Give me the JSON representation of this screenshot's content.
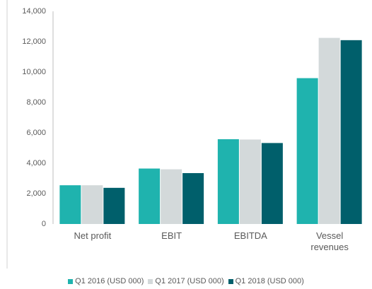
{
  "chart_data": {
    "type": "bar",
    "categories": [
      "Net profit",
      "EBIT",
      "EBITDA",
      "Vessel revenues"
    ],
    "series": [
      {
        "name": "Q1 2016 (USD 000)",
        "color": "#1fb3ae",
        "values": [
          2550,
          3650,
          5580,
          9600
        ]
      },
      {
        "name": "Q1 2017 (USD 000)",
        "color": "#d3d9da",
        "values": [
          2550,
          3600,
          5560,
          12250
        ]
      },
      {
        "name": "Q1 2018 (USD 000)",
        "color": "#005f6b",
        "values": [
          2380,
          3350,
          5330,
          12100
        ]
      }
    ],
    "ylim": [
      0,
      14000
    ],
    "yticks": [
      0,
      {
        "value": 2000,
        "label": "2,000"
      },
      {
        "value": 4000,
        "label": "4,000"
      },
      {
        "value": 6000,
        "label": "6,000"
      },
      {
        "value": 8000,
        "label": "8,000"
      },
      {
        "value": 10000,
        "label": "10,000"
      },
      {
        "value": 12000,
        "label": "12,000"
      },
      {
        "value": 14000,
        "label": "14,000"
      }
    ],
    "legend": "bottom"
  }
}
